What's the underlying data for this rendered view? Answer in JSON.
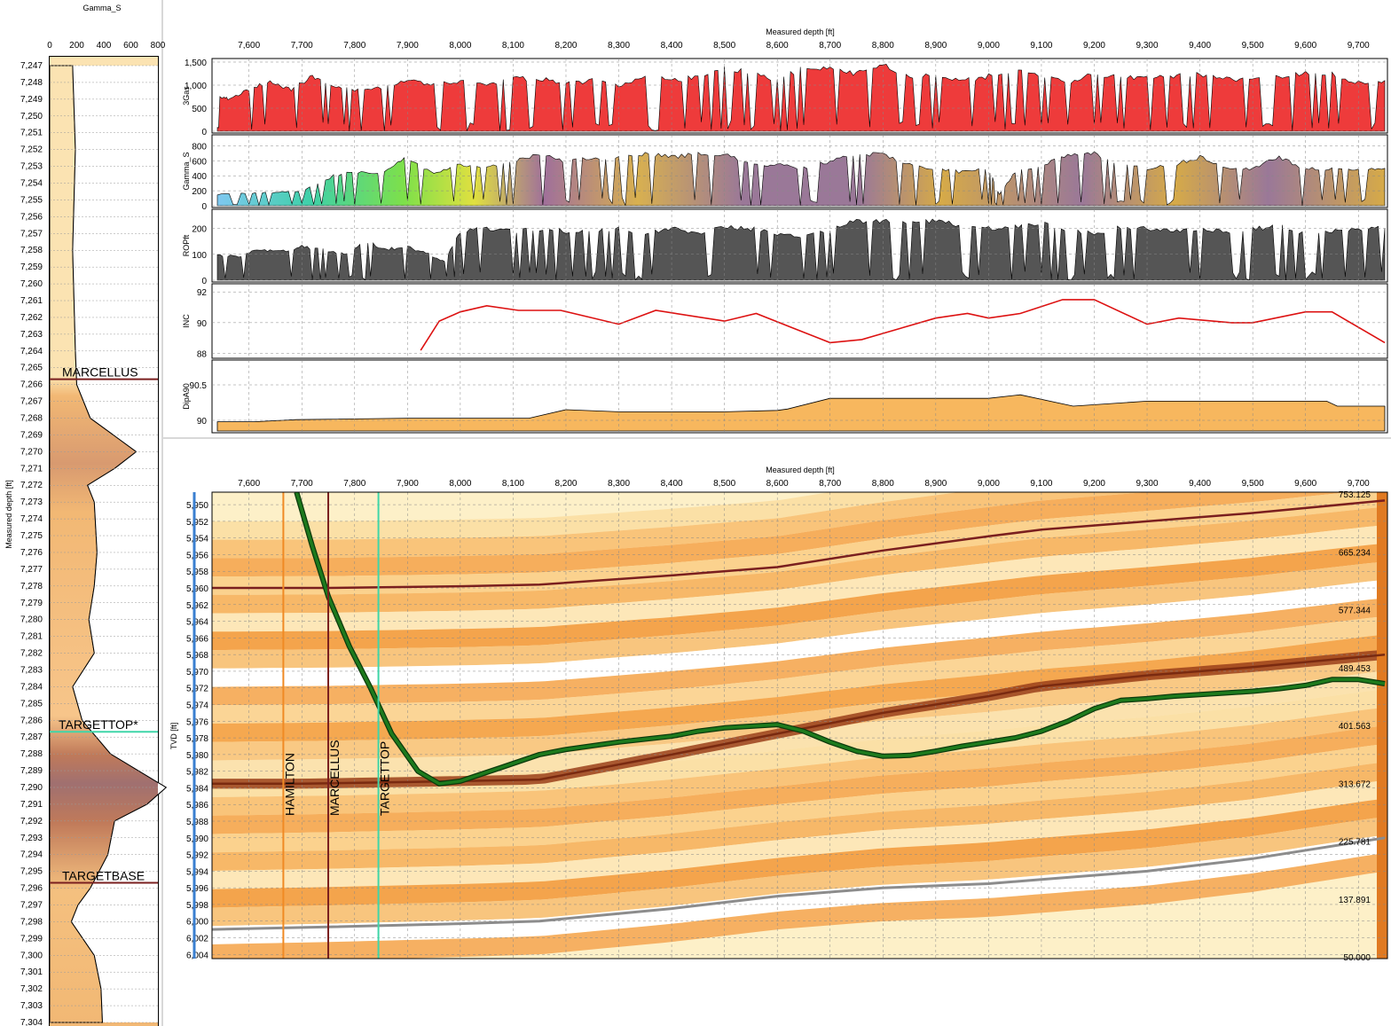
{
  "colors": {
    "gas": "#ee3b3b",
    "rop": "#555555",
    "inc": "#dd1111",
    "dip": "#f7b75e",
    "marcellus": "#7a1f1f",
    "targettop": "#3fd6a8",
    "hamilton": "#f08a24",
    "wellbore": "#1d7a1d",
    "base": "#8c8c8c",
    "depth_axis": "#3a7fd0"
  },
  "gamma_log": {
    "title": "Gamma_S",
    "ylabel": "Measured depth [ft]",
    "x_ticks": [
      "0",
      "200",
      "400",
      "600",
      "800"
    ],
    "xlim": [
      0,
      800
    ],
    "ylim": [
      7247,
      7304
    ],
    "depth_ticks": [
      "7,247",
      "7,248",
      "7,249",
      "7,250",
      "7,251",
      "7,252",
      "7,253",
      "7,254",
      "7,255",
      "7,256",
      "7,257",
      "7,258",
      "7,259",
      "7,260",
      "7,261",
      "7,262",
      "7,263",
      "7,264",
      "7,265",
      "7,266",
      "7,267",
      "7,268",
      "7,269",
      "7,270",
      "7,271",
      "7,272",
      "7,273",
      "7,274",
      "7,275",
      "7,276",
      "7,277",
      "7,278",
      "7,279",
      "7,280",
      "7,281",
      "7,282",
      "7,283",
      "7,284",
      "7,285",
      "7,286",
      "7,287",
      "7,288",
      "7,289",
      "7,290",
      "7,291",
      "7,292",
      "7,293",
      "7,294",
      "7,295",
      "7,296",
      "7,297",
      "7,298",
      "7,299",
      "7,300",
      "7,301",
      "7,302",
      "7,303",
      "7,304"
    ],
    "markers": [
      {
        "label": "MARCELLUS",
        "depth": 7266
      },
      {
        "label": "TARGETTOP*",
        "depth": 7287
      },
      {
        "label": "TARGETBASE",
        "depth": 7296
      }
    ]
  },
  "chart_data": [
    {
      "type": "area",
      "id": "gas",
      "ylabel": "3Gas",
      "xlabel": "Measured depth [ft]",
      "x_ticks": [
        "7,600",
        "7,700",
        "7,800",
        "7,900",
        "8,000",
        "8,100",
        "8,200",
        "8,300",
        "8,400",
        "8,500",
        "8,600",
        "8,700",
        "8,800",
        "8,900",
        "9,000",
        "9,100",
        "9,200",
        "9,300",
        "9,400",
        "9,500",
        "9,600",
        "9,700"
      ],
      "xlim": [
        7530,
        9755
      ],
      "ylim": [
        0,
        1500
      ],
      "y_ticks": [
        "1,500",
        "1,000",
        "500",
        "0"
      ],
      "x": [
        7540,
        7560,
        7600,
        7640,
        7680,
        7720,
        7760,
        7800,
        7850,
        7900,
        7950,
        8000,
        8050,
        8100,
        8150,
        8200,
        8250,
        8300,
        8350,
        8400,
        8450,
        8500,
        8550,
        8600,
        8650,
        8700,
        8750,
        8800,
        8850,
        8900,
        8950,
        9000,
        9050,
        9100,
        9150,
        9200,
        9250,
        9300,
        9350,
        9400,
        9450,
        9500,
        9550,
        9600,
        9650,
        9700,
        9750
      ],
      "y": [
        800,
        700,
        900,
        1100,
        900,
        1200,
        1000,
        900,
        950,
        1100,
        1000,
        1100,
        1000,
        1150,
        1150,
        1050,
        1100,
        1000,
        1200,
        1100,
        1200,
        1350,
        1300,
        1100,
        1400,
        1350,
        1250,
        1450,
        1200,
        1250,
        1100,
        1200,
        1350,
        1200,
        1050,
        1250,
        1200,
        1150,
        1200,
        1250,
        1150,
        1100,
        1200,
        1250,
        1250,
        1050,
        1100
      ]
    },
    {
      "type": "area",
      "id": "gamma",
      "ylabel": "Gamma_S",
      "xlim": [
        7530,
        9755
      ],
      "ylim": [
        0,
        900
      ],
      "y_ticks": [
        "800",
        "600",
        "400",
        "200",
        "0"
      ],
      "x": [
        7540,
        7600,
        7650,
        7700,
        7760,
        7800,
        7850,
        7900,
        7950,
        8000,
        8050,
        8100,
        8150,
        8200,
        8250,
        8300,
        8350,
        8400,
        8450,
        8500,
        8550,
        8600,
        8650,
        8700,
        8750,
        8800,
        8850,
        8900,
        8950,
        9000,
        9020,
        9050,
        9100,
        9150,
        9200,
        9250,
        9300,
        9350,
        9400,
        9450,
        9500,
        9550,
        9600,
        9650,
        9700,
        9750
      ],
      "y": [
        150,
        170,
        180,
        200,
        400,
        450,
        420,
        650,
        420,
        550,
        500,
        600,
        680,
        600,
        650,
        650,
        700,
        650,
        700,
        700,
        550,
        550,
        500,
        600,
        700,
        700,
        550,
        500,
        450,
        500,
        150,
        450,
        550,
        700,
        700,
        550,
        500,
        550,
        650,
        500,
        500,
        650,
        500,
        500,
        500,
        500
      ]
    },
    {
      "type": "area",
      "id": "rop",
      "ylabel": "ROPft",
      "xlim": [
        7530,
        9755
      ],
      "ylim": [
        0,
        260
      ],
      "y_ticks": [
        "200",
        "100",
        "0"
      ],
      "x": [
        7540,
        7580,
        7620,
        7660,
        7700,
        7740,
        7780,
        7820,
        7860,
        7900,
        7940,
        7970,
        8000,
        8050,
        8100,
        8150,
        8200,
        8250,
        8300,
        8350,
        8400,
        8450,
        8500,
        8550,
        8600,
        8650,
        8700,
        8750,
        8800,
        8850,
        8900,
        8950,
        9000,
        9050,
        9100,
        9150,
        9200,
        9250,
        9300,
        9350,
        9400,
        9450,
        9500,
        9550,
        9600,
        9650,
        9700,
        9750
      ],
      "y": [
        100,
        90,
        120,
        110,
        130,
        120,
        100,
        150,
        120,
        130,
        100,
        70,
        190,
        200,
        190,
        200,
        190,
        190,
        200,
        180,
        200,
        180,
        210,
        200,
        180,
        170,
        200,
        230,
        230,
        220,
        230,
        210,
        200,
        210,
        220,
        200,
        180,
        210,
        200,
        190,
        200,
        190,
        200,
        210,
        180,
        190,
        200,
        200
      ]
    },
    {
      "type": "line",
      "id": "inc",
      "ylabel": "INC",
      "xlim": [
        7530,
        9755
      ],
      "ylim": [
        87.8,
        92.3
      ],
      "y_ticks": [
        "92",
        "90",
        "88"
      ],
      "x": [
        7925,
        7960,
        8000,
        8050,
        8110,
        8190,
        8300,
        8370,
        8500,
        8560,
        8700,
        8760,
        8900,
        8960,
        9000,
        9060,
        9140,
        9200,
        9300,
        9360,
        9460,
        9500,
        9600,
        9650,
        9750
      ],
      "y": [
        88.2,
        90.1,
        90.7,
        91.1,
        90.8,
        90.8,
        89.9,
        90.8,
        90.1,
        90.6,
        88.7,
        88.9,
        90.3,
        90.6,
        90.3,
        90.6,
        91.5,
        91.5,
        89.9,
        90.3,
        90.0,
        90.0,
        90.7,
        90.7,
        88.7
      ]
    },
    {
      "type": "area",
      "id": "dip",
      "ylabel": "DipA90",
      "xlim": [
        7530,
        9755
      ],
      "ylim": [
        89.85,
        90.8
      ],
      "y_ticks": [
        "90.5",
        "90"
      ],
      "x": [
        7540,
        7610,
        7690,
        7900,
        8130,
        8200,
        8300,
        8500,
        8600,
        8620,
        8700,
        8820,
        8900,
        9000,
        9060,
        9160,
        9300,
        9640,
        9660,
        9750
      ],
      "y": [
        89.98,
        89.98,
        90.01,
        90.03,
        90.03,
        90.15,
        90.12,
        90.12,
        90.14,
        90.16,
        90.31,
        90.31,
        90.31,
        90.31,
        90.36,
        90.2,
        90.27,
        90.27,
        90.2,
        90.2
      ]
    },
    {
      "type": "line",
      "id": "cross_section",
      "xlabel": "Measured depth [ft]",
      "ylabel": "TVD [ft]",
      "xlim": [
        7530,
        9755
      ],
      "ylim": [
        5948.5,
        6004.5
      ],
      "x_ticks": [
        "7,600",
        "7,700",
        "7,800",
        "7,900",
        "8,000",
        "8,100",
        "8,200",
        "8,300",
        "8,400",
        "8,500",
        "8,600",
        "8,700",
        "8,800",
        "8,900",
        "9,000",
        "9,100",
        "9,200",
        "9,300",
        "9,400",
        "9,500",
        "9,600",
        "9,700"
      ],
      "y_ticks": [
        "5,950",
        "5,952",
        "5,954",
        "5,956",
        "5,958",
        "5,960",
        "5,962",
        "5,964",
        "5,966",
        "5,968",
        "5,970",
        "5,972",
        "5,974",
        "5,976",
        "5,978",
        "5,980",
        "5,982",
        "5,984",
        "5,986",
        "5,988",
        "5,990",
        "5,992",
        "5,994",
        "5,996",
        "5,998",
        "6,000",
        "6,002",
        "6,004"
      ],
      "gamma_scale": [
        "753.125",
        "665.234",
        "577.344",
        "489.453",
        "401.563",
        "313.672",
        "225.781",
        "137.891",
        "50.000"
      ],
      "vertical_markers": [
        {
          "label": "HAMILTON",
          "x": 7665
        },
        {
          "label": "MARCELLUS",
          "x": 7750
        },
        {
          "label": "TARGETTOP",
          "x": 7845
        }
      ],
      "series": [
        {
          "name": "MARCELLUS",
          "x": [
            7530,
            7750,
            8000,
            8150,
            8400,
            8600,
            8800,
            9000,
            9100,
            9300,
            9500,
            9750
          ],
          "y": [
            5960,
            5960,
            5959.8,
            5959.6,
            5958.5,
            5957.5,
            5955.5,
            5953.8,
            5953.0,
            5952.0,
            5951,
            5949.5
          ]
        },
        {
          "name": "TARGETTOP",
          "x": [
            7530,
            7700,
            7900,
            8150,
            8400,
            8600,
            8800,
            9000,
            9100,
            9300,
            9500,
            9750
          ],
          "y": [
            5983.5,
            5983.5,
            5983.3,
            5983.0,
            5980.0,
            5977.5,
            5975.0,
            5973.0,
            5971.8,
            5970.5,
            5969.5,
            5968.0
          ]
        },
        {
          "name": "BASE",
          "x": [
            7530,
            7750,
            8000,
            8150,
            8400,
            8600,
            8800,
            9000,
            9100,
            9300,
            9500,
            9750
          ],
          "y": [
            6001.0,
            6000.7,
            6000.3,
            6000.0,
            5998.5,
            5997.0,
            5996.0,
            5995.5,
            5995.0,
            5994.0,
            5992.5,
            5990.0
          ]
        },
        {
          "name": "Wellbore",
          "x": [
            7690,
            7720,
            7750,
            7790,
            7830,
            7870,
            7920,
            7960,
            8000,
            8080,
            8150,
            8200,
            8300,
            8400,
            8450,
            8500,
            8600,
            8650,
            8700,
            8750,
            8800,
            8850,
            8900,
            8950,
            9000,
            9050,
            9100,
            9150,
            9200,
            9250,
            9300,
            9350,
            9400,
            9450,
            9500,
            9550,
            9600,
            9650,
            9700,
            9750
          ],
          "y": [
            5948.5,
            5955,
            5961,
            5967,
            5972,
            5977.5,
            5982,
            5983.5,
            5983.2,
            5981.5,
            5980,
            5979.4,
            5978.5,
            5977.8,
            5977.2,
            5976.8,
            5976.4,
            5977.2,
            5978.5,
            5979.6,
            5980.2,
            5980.1,
            5979.6,
            5979.0,
            5978.5,
            5978.0,
            5977.2,
            5976.0,
            5974.5,
            5973.5,
            5973.3,
            5973.0,
            5972.8,
            5972.6,
            5972.4,
            5972.1,
            5971.7,
            5971.0,
            5971.0,
            5971.5
          ]
        }
      ]
    }
  ]
}
